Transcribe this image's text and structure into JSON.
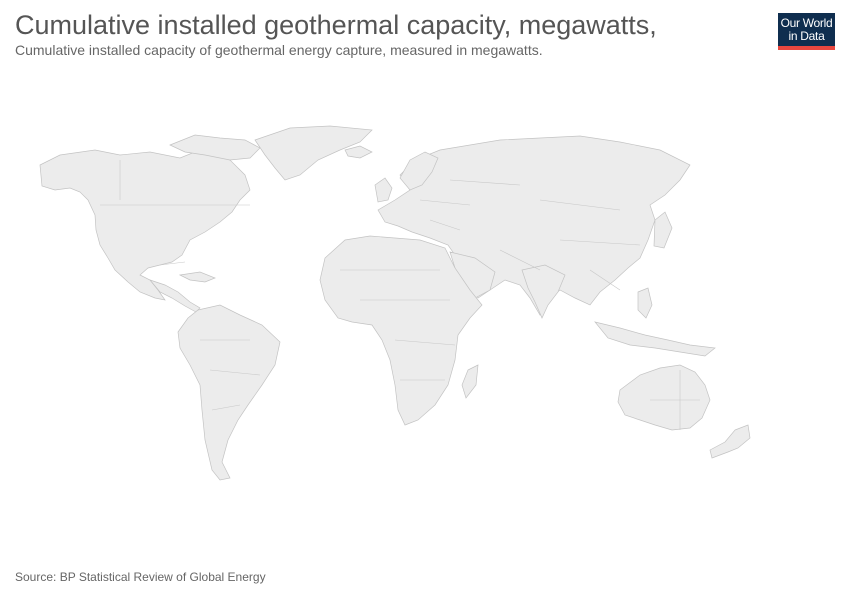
{
  "header": {
    "title": "Cumulative installed geothermal capacity, megawatts,",
    "subtitle": "Cumulative installed capacity of geothermal energy capture, measured in megawatts."
  },
  "logo": {
    "line1": "Our World",
    "line2": "in Data"
  },
  "footer": {
    "source": "Source: BP Statistical Review of Global Energy"
  },
  "colors": {
    "land": "#ececec",
    "border": "#c3c3c3",
    "logo_bg": "#0f2e4f",
    "logo_accent": "#e8473f"
  }
}
